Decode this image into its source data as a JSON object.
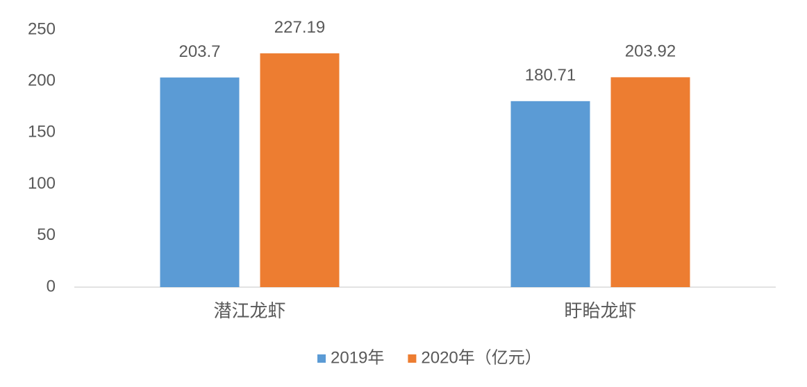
{
  "chart_data": {
    "type": "bar",
    "categories": [
      "潜江龙虾",
      "盱眙龙虾"
    ],
    "series": [
      {
        "name": "2019年",
        "color": "#5b9bd5",
        "values": [
          203.7,
          180.71
        ]
      },
      {
        "name": "2020年（亿元）",
        "color": "#ed7d31",
        "values": [
          227.19,
          203.92
        ]
      }
    ],
    "ylim": [
      0,
      250
    ],
    "yticks": [
      0,
      50,
      100,
      150,
      200,
      250
    ],
    "grid": false,
    "legend": "bottom",
    "data_labels": true
  }
}
